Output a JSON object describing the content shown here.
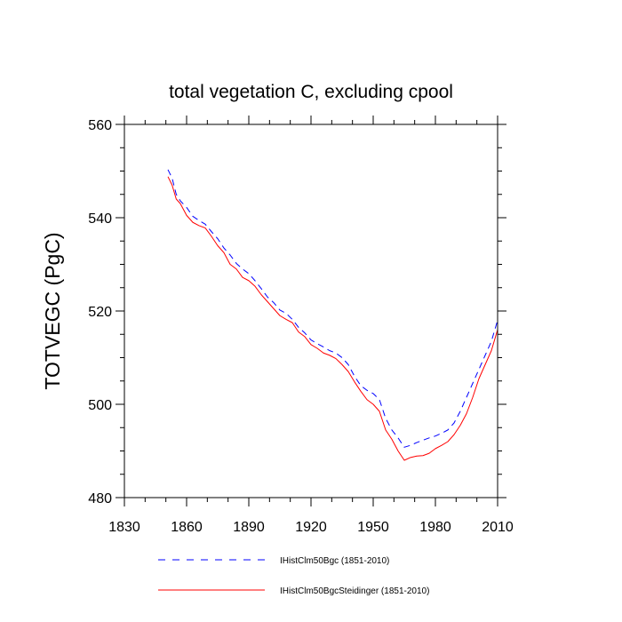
{
  "chart_data": {
    "type": "line",
    "title": "total vegetation C, excluding cpool",
    "xlabel": "",
    "ylabel": "TOTVEGC  (PgC)",
    "xlim": [
      1830,
      2010
    ],
    "ylim": [
      480,
      560
    ],
    "xticks": [
      1830,
      1860,
      1890,
      1920,
      1950,
      1980,
      2010
    ],
    "yticks": [
      480,
      500,
      520,
      540,
      560
    ],
    "grid": false,
    "legend_position": "bottom",
    "series": [
      {
        "name": "IHistClm50Bgc (1851-2010)",
        "color": "#0000ff",
        "dash": "dashed",
        "x": [
          1851,
          1853,
          1855,
          1857,
          1860,
          1863,
          1866,
          1869,
          1872,
          1875,
          1878,
          1881,
          1884,
          1887,
          1890,
          1893,
          1896,
          1899,
          1902,
          1905,
          1908,
          1911,
          1914,
          1917,
          1920,
          1923,
          1926,
          1929,
          1932,
          1935,
          1938,
          1941,
          1944,
          1947,
          1950,
          1953,
          1956,
          1959,
          1962,
          1965,
          1968,
          1971,
          1974,
          1977,
          1980,
          1983,
          1986,
          1989,
          1992,
          1995,
          1998,
          2001,
          2004,
          2007,
          2010
        ],
        "y": [
          550.3,
          548.5,
          545.0,
          543.6,
          542.2,
          540.3,
          539.4,
          538.6,
          537.0,
          535.5,
          533.5,
          532.0,
          530.2,
          529.0,
          528.0,
          526.5,
          524.8,
          523.0,
          521.8,
          520.2,
          519.5,
          518.2,
          516.5,
          515.3,
          513.8,
          513.0,
          512.3,
          511.5,
          511.0,
          510.0,
          508.5,
          506.0,
          504.0,
          503.0,
          502.3,
          501.0,
          497.0,
          494.5,
          492.8,
          490.8,
          491.2,
          491.8,
          492.3,
          492.8,
          493.2,
          493.8,
          494.5,
          496.0,
          498.5,
          501.5,
          504.5,
          507.5,
          510.5,
          513.5,
          518.0
        ]
      },
      {
        "name": "IHistClm50BgcSteidinger (1851-2010)",
        "color": "#ff0000",
        "dash": "solid",
        "x": [
          1851,
          1853,
          1855,
          1857,
          1860,
          1863,
          1866,
          1869,
          1872,
          1875,
          1878,
          1881,
          1884,
          1887,
          1890,
          1893,
          1896,
          1899,
          1902,
          1905,
          1908,
          1911,
          1914,
          1917,
          1920,
          1923,
          1926,
          1929,
          1932,
          1935,
          1938,
          1941,
          1944,
          1947,
          1950,
          1953,
          1956,
          1959,
          1962,
          1965,
          1968,
          1971,
          1974,
          1977,
          1980,
          1983,
          1986,
          1989,
          1992,
          1995,
          1998,
          2001,
          2004,
          2007,
          2010
        ],
        "y": [
          548.8,
          547.0,
          544.0,
          543.0,
          540.5,
          539.0,
          538.3,
          537.8,
          536.0,
          534.0,
          532.5,
          530.0,
          529.0,
          527.2,
          526.5,
          525.3,
          523.5,
          522.0,
          520.5,
          519.0,
          518.2,
          517.5,
          515.5,
          514.5,
          512.8,
          512.0,
          511.0,
          510.5,
          509.8,
          508.5,
          507.0,
          504.8,
          502.8,
          501.0,
          500.0,
          498.5,
          494.5,
          492.5,
          490.0,
          488.0,
          488.6,
          488.9,
          489.0,
          489.5,
          490.5,
          491.2,
          492.0,
          493.5,
          495.5,
          498.0,
          501.5,
          505.5,
          508.5,
          511.5,
          516.0
        ]
      }
    ]
  }
}
